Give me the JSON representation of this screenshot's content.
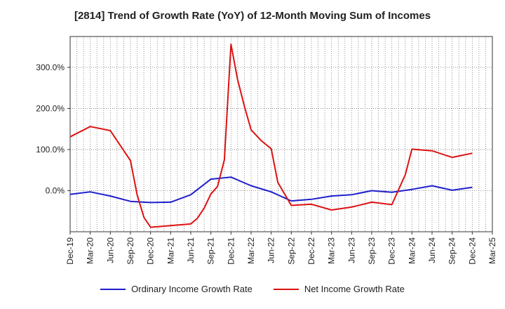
{
  "chart_data": {
    "type": "line",
    "title": "[2814]  Trend of Growth Rate (YoY) of 12-Month Moving Sum of Incomes",
    "ylim": [
      -100,
      375
    ],
    "yticks": [
      0,
      100,
      200,
      300
    ],
    "ytick_labels": [
      "0.0%",
      "100.0%",
      "200.0%",
      "300.0%"
    ],
    "x_labels": [
      "Dec-19",
      "Mar-20",
      "Jun-20",
      "Sep-20",
      "Dec-20",
      "Mar-21",
      "Jun-21",
      "Sep-21",
      "Dec-21",
      "Mar-22",
      "Jun-22",
      "Sep-22",
      "Dec-22",
      "Mar-23",
      "Jun-23",
      "Sep-23",
      "Dec-23",
      "Mar-24",
      "Jun-24",
      "Sep-24",
      "Dec-24",
      "Mar-25"
    ],
    "grid": true,
    "legend_position": "bottom",
    "series": [
      {
        "name": "Ordinary Income Growth Rate",
        "color": "#1f1fcc",
        "points": [
          [
            0,
            -9
          ],
          [
            1,
            -3
          ],
          [
            2,
            -13
          ],
          [
            3,
            -26
          ],
          [
            4,
            -29
          ],
          [
            5,
            -28
          ],
          [
            6,
            -10
          ],
          [
            7,
            28
          ],
          [
            8,
            33
          ],
          [
            9,
            12
          ],
          [
            10,
            -3
          ],
          [
            11,
            -25
          ],
          [
            12,
            -21
          ],
          [
            13,
            -13
          ],
          [
            14,
            -10
          ],
          [
            15,
            0
          ],
          [
            16,
            -4
          ],
          [
            17,
            3
          ],
          [
            18,
            12
          ],
          [
            19,
            1
          ],
          [
            20,
            8
          ]
        ]
      },
      {
        "name": "Net Income Growth Rate",
        "color": "#dd1111",
        "points": [
          [
            0,
            131
          ],
          [
            1,
            156
          ],
          [
            2,
            146
          ],
          [
            3,
            73
          ],
          [
            3.33,
            -10
          ],
          [
            3.67,
            -65
          ],
          [
            4,
            -89
          ],
          [
            5,
            -85
          ],
          [
            6,
            -81
          ],
          [
            6.33,
            -67
          ],
          [
            6.67,
            -42
          ],
          [
            7,
            -8
          ],
          [
            7.33,
            10
          ],
          [
            7.67,
            75
          ],
          [
            8,
            356
          ],
          [
            8.33,
            270
          ],
          [
            8.67,
            205
          ],
          [
            9,
            148
          ],
          [
            9.5,
            122
          ],
          [
            10,
            102
          ],
          [
            10.33,
            20
          ],
          [
            11,
            -36
          ],
          [
            12,
            -33
          ],
          [
            13,
            -47
          ],
          [
            14,
            -40
          ],
          [
            15,
            -28
          ],
          [
            16,
            -34
          ],
          [
            16.67,
            39
          ],
          [
            17,
            101
          ],
          [
            18,
            97
          ],
          [
            19,
            81
          ],
          [
            20,
            91
          ]
        ]
      }
    ]
  }
}
